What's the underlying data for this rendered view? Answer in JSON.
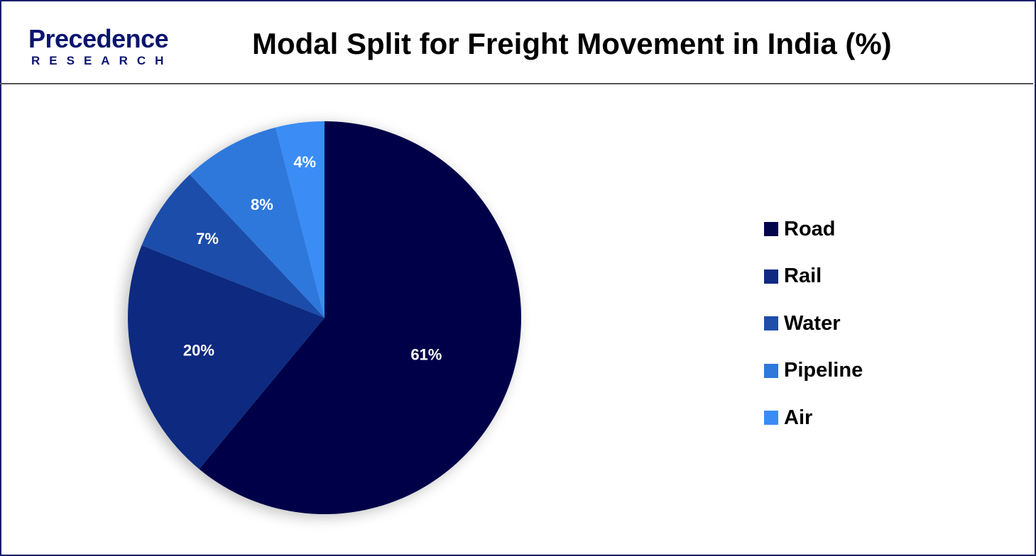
{
  "header": {
    "logo_main": "Precedence",
    "logo_sub": "RESEARCH",
    "title": "Modal Split for Freight Movement in India (%)"
  },
  "chart_data": {
    "type": "pie",
    "title": "Modal Split for Freight Movement in India (%)",
    "categories": [
      "Road",
      "Rail",
      "Water",
      "Pipeline",
      "Air"
    ],
    "values": [
      61,
      20,
      7,
      8,
      4
    ],
    "labels": [
      "61%",
      "20%",
      "7%",
      "8%",
      "4%"
    ],
    "colors": [
      "#03054a",
      "#0f2a80",
      "#1f4eaa",
      "#2f78dc",
      "#3a8cf5"
    ],
    "legend_position": "right",
    "start_angle": "12 o'clock, clockwise"
  },
  "legend": {
    "items": [
      {
        "label": "Road",
        "color": "#03054a"
      },
      {
        "label": "Rail",
        "color": "#0f2a80"
      },
      {
        "label": "Water",
        "color": "#1f4eaa"
      },
      {
        "label": "Pipeline",
        "color": "#2f78dc"
      },
      {
        "label": "Air",
        "color": "#3a8cf5"
      }
    ]
  }
}
